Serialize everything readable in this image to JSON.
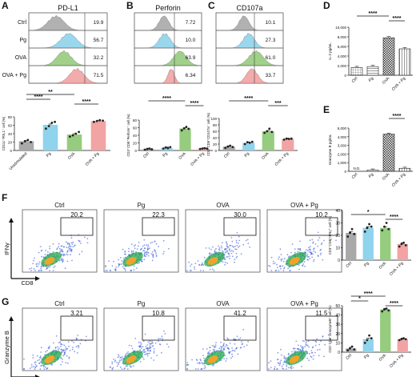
{
  "panel_letters": [
    "A",
    "B",
    "C",
    "D",
    "E",
    "F",
    "G"
  ],
  "colors": {
    "ctrl": "#a9a9a9",
    "pg": "#8fd3ec",
    "ova": "#96cc7e",
    "ovapg": "#f2a3a3",
    "dots": "#222222"
  },
  "chart_data": [
    {
      "panel": "A",
      "type": "histogram",
      "title": "PD-L1",
      "rows": [
        {
          "label": "Ctrl",
          "value_label": "19.9"
        },
        {
          "label": "Pg",
          "value_label": "56.7"
        },
        {
          "label": "OVA",
          "value_label": "32.2"
        },
        {
          "label": "OVA + Pg",
          "value_label": "71.5"
        }
      ]
    },
    {
      "panel": "B",
      "type": "histogram",
      "title": "Perforin",
      "rows": [
        {
          "label": "",
          "value_label": "7.72"
        },
        {
          "label": "",
          "value_label": "10.0"
        },
        {
          "label": "",
          "value_label": "63.9"
        },
        {
          "label": "",
          "value_label": "6.34"
        }
      ]
    },
    {
      "panel": "C",
      "type": "histogram",
      "title": "CD107a",
      "rows": [
        {
          "label": "",
          "value_label": "10.1"
        },
        {
          "label": "",
          "value_label": "27.3"
        },
        {
          "label": "",
          "value_label": "61.0"
        },
        {
          "label": "",
          "value_label": "33.7"
        }
      ]
    },
    {
      "panel": "A",
      "type": "bar",
      "categories": [
        "Unstimulated",
        "Pg",
        "OVA",
        "OVA + Pg"
      ],
      "values": [
        22,
        61,
        38,
        70
      ],
      "points": [
        [
          17,
          22,
          25,
          20
        ],
        [
          52,
          58,
          66,
          68
        ],
        [
          33,
          36,
          40,
          44
        ],
        [
          68,
          70,
          72,
          71
        ]
      ],
      "ylabel": "CD11c⁺PDL1⁺ cell (%)",
      "ylim": [
        0,
        80
      ],
      "yticks": [
        0,
        20,
        40,
        60,
        80
      ],
      "sig": [
        {
          "from": 0,
          "to": 2,
          "label": "**"
        },
        {
          "from": 0,
          "to": 1,
          "label": "****"
        },
        {
          "from": 2,
          "to": 3,
          "label": "****"
        }
      ]
    },
    {
      "panel": "B",
      "type": "bar",
      "categories": [
        "Ctrl",
        "Pg",
        "OVA",
        "OVA + Pg"
      ],
      "values": [
        4,
        7,
        58,
        5
      ],
      "points": [
        [
          2,
          4,
          5,
          3
        ],
        [
          5,
          8,
          6,
          9
        ],
        [
          53,
          58,
          62,
          57
        ],
        [
          4,
          5,
          6,
          5
        ]
      ],
      "ylabel": "CD3⁺CD8⁺Perforin⁺ cell (%)",
      "ylim": [
        0,
        80
      ],
      "yticks": [
        0,
        20,
        40,
        60,
        80
      ],
      "sig": [
        {
          "from": 0,
          "to": 2,
          "label": "****"
        },
        {
          "from": 2,
          "to": 3,
          "label": "****"
        }
      ]
    },
    {
      "panel": "C",
      "type": "bar",
      "categories": [
        "Ctrl",
        "Pg",
        "OVA",
        "OVA + Pg"
      ],
      "values": [
        12,
        24,
        60,
        36
      ],
      "points": [
        [
          8,
          12,
          15,
          11
        ],
        [
          20,
          26,
          24,
          27
        ],
        [
          55,
          60,
          68,
          58
        ],
        [
          34,
          37,
          36,
          37
        ]
      ],
      "ylabel": "CD3⁺CD8⁺CD107a⁺ cell (%)",
      "ylim": [
        0,
        100
      ],
      "yticks": [
        0,
        20,
        40,
        60,
        80,
        100
      ],
      "sig": [
        {
          "from": 0,
          "to": 2,
          "label": "****"
        },
        {
          "from": 2,
          "to": 3,
          "label": "***"
        }
      ]
    },
    {
      "panel": "D",
      "type": "bar",
      "categories": [
        "Ctrl",
        "Pg",
        "OVA",
        "OVA + Pg"
      ],
      "values": [
        1600,
        1800,
        7800,
        5500
      ],
      "ylabel": "IL-2 pg/mL",
      "ylim": [
        0,
        10000
      ],
      "yticks": [
        0,
        2000,
        4000,
        6000,
        8000,
        10000
      ],
      "sig": [
        {
          "from": 0,
          "to": 2,
          "label": "****"
        },
        {
          "from": 2,
          "to": 3,
          "label": "****"
        }
      ]
    },
    {
      "panel": "E",
      "type": "bar",
      "categories": [
        "Ctrl",
        "Pg",
        "OVA",
        "OVA + Pg"
      ],
      "values": [
        0,
        150,
        4300,
        350
      ],
      "annotations": [
        "N.D.",
        "",
        "",
        ""
      ],
      "ylabel": "Granzyme B pg/mL",
      "ylim": [
        0,
        5000
      ],
      "yticks": [
        0,
        1000,
        2000,
        3000,
        4000,
        5000
      ],
      "sig": [
        {
          "from": 2,
          "to": 3,
          "label": "****"
        }
      ]
    },
    {
      "panel": "F",
      "type": "flow",
      "panels": [
        "Ctrl",
        "Pg",
        "OVA",
        "OVA + Pg"
      ],
      "gate_values": [
        "20.2",
        "22.3",
        "30.0",
        "10.2"
      ],
      "xlabel": "CD8",
      "ylabel": "IFNγ"
    },
    {
      "panel": "F",
      "type": "bar",
      "categories": [
        "Ctrl",
        "Pg",
        "OVA",
        "OVA + Pg"
      ],
      "values": [
        22,
        26,
        26,
        13
      ],
      "points": [
        [
          19,
          22,
          25,
          21
        ],
        [
          23,
          26,
          29,
          27
        ],
        [
          24,
          27,
          30,
          25
        ],
        [
          11,
          13,
          14,
          12
        ]
      ],
      "ylabel": "CD3⁺CD8⁺IFNγ⁺ cell (%)",
      "ylim": [
        0,
        40
      ],
      "yticks": [
        0,
        10,
        20,
        30,
        40
      ],
      "sig": [
        {
          "from": 0,
          "to": 2,
          "label": "*"
        },
        {
          "from": 2,
          "to": 3,
          "label": "****"
        }
      ]
    },
    {
      "panel": "G",
      "type": "flow",
      "panels": [
        "Ctrl",
        "Pg",
        "OVA",
        "OVA + Pg"
      ],
      "gate_values": [
        "3.21",
        "10.8",
        "41.2",
        "11.5"
      ],
      "xlabel": "CD8",
      "ylabel": "Granzyme B"
    },
    {
      "panel": "G",
      "type": "bar",
      "categories": [
        "Ctrl",
        "Pg",
        "OVA",
        "OVA + Pg"
      ],
      "values": [
        4,
        14,
        46,
        14
      ],
      "points": [
        [
          2,
          4,
          6,
          3
        ],
        [
          10,
          13,
          18,
          15
        ],
        [
          44,
          46,
          47,
          45
        ],
        [
          13,
          14,
          15,
          14
        ]
      ],
      "ylabel": "CD3⁺CD8⁺GranzymeB⁺ cell (%)",
      "ylim": [
        0,
        50
      ],
      "yticks": [
        0,
        10,
        20,
        30,
        40,
        50
      ],
      "sig": [
        {
          "from": 0,
          "to": 2,
          "label": "****"
        },
        {
          "from": 0,
          "to": 1,
          "label": "*"
        },
        {
          "from": 2,
          "to": 3,
          "label": "****"
        }
      ]
    }
  ]
}
